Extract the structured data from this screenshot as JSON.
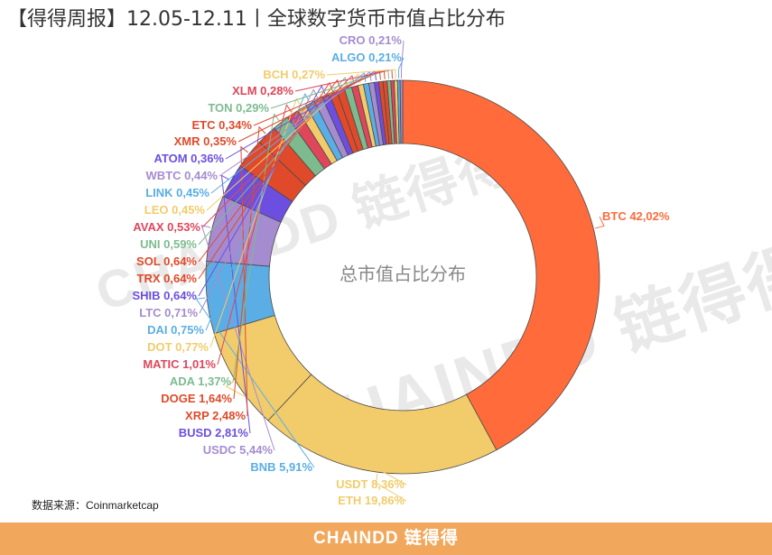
{
  "header": {
    "title": "【得得周报】12.05-12.11丨全球数字货币市值占比分布"
  },
  "watermark": {
    "text1": "CHAINDD 链得得",
    "text2": "CHAINDD 链得得"
  },
  "source": {
    "text": "数据来源：Coinmarketcap"
  },
  "footer": {
    "logo": "CHAINDD 链得得",
    "background": "#f2a85c"
  },
  "chart_data": {
    "type": "pie",
    "center_label": "总市值占比分布",
    "slices": [
      {
        "label": "BTC",
        "value_text": "42,02%",
        "value": 42.02,
        "color": "#ff6b3b"
      },
      {
        "label": "ETH",
        "value_text": "19,86%",
        "value": 19.86,
        "color": "#f2cc6b"
      },
      {
        "label": "USDT",
        "value_text": "8,36%",
        "value": 8.36,
        "color": "#f2cc6b"
      },
      {
        "label": "BNB",
        "value_text": "5,91%",
        "value": 5.91,
        "color": "#5aaee5"
      },
      {
        "label": "USDC",
        "value_text": "5,44%",
        "value": 5.44,
        "color": "#a58cd0"
      },
      {
        "label": "BUSD",
        "value_text": "2,81%",
        "value": 2.81,
        "color": "#6c4fe0"
      },
      {
        "label": "XRP",
        "value_text": "2,48%",
        "value": 2.48,
        "color": "#e04a2a"
      },
      {
        "label": "DOGE",
        "value_text": "1,64%",
        "value": 1.64,
        "color": "#e04a2a"
      },
      {
        "label": "ADA",
        "value_text": "1,37%",
        "value": 1.37,
        "color": "#7dbb8f"
      },
      {
        "label": "MATIC",
        "value_text": "1,01%",
        "value": 1.01,
        "color": "#e0465a"
      },
      {
        "label": "DOT",
        "value_text": "0,77%",
        "value": 0.77,
        "color": "#f2cc6b"
      },
      {
        "label": "DAI",
        "value_text": "0,75%",
        "value": 0.75,
        "color": "#5aaee5"
      },
      {
        "label": "LTC",
        "value_text": "0,71%",
        "value": 0.71,
        "color": "#a58cd0"
      },
      {
        "label": "SHIB",
        "value_text": "0,64%",
        "value": 0.64,
        "color": "#6c4fe0"
      },
      {
        "label": "TRX",
        "value_text": "0,64%",
        "value": 0.64,
        "color": "#e04a2a"
      },
      {
        "label": "SOL",
        "value_text": "0,64%",
        "value": 0.64,
        "color": "#e04a2a"
      },
      {
        "label": "UNI",
        "value_text": "0,59%",
        "value": 0.59,
        "color": "#7dbb8f"
      },
      {
        "label": "AVAX",
        "value_text": "0,53%",
        "value": 0.53,
        "color": "#e0465a"
      },
      {
        "label": "LEO",
        "value_text": "0,45%",
        "value": 0.45,
        "color": "#f2cc6b"
      },
      {
        "label": "LINK",
        "value_text": "0,45%",
        "value": 0.45,
        "color": "#5aaee5"
      },
      {
        "label": "WBTC",
        "value_text": "0,44%",
        "value": 0.44,
        "color": "#a58cd0"
      },
      {
        "label": "ATOM",
        "value_text": "0,36%",
        "value": 0.36,
        "color": "#6c4fe0"
      },
      {
        "label": "XMR",
        "value_text": "0,35%",
        "value": 0.35,
        "color": "#e04a2a"
      },
      {
        "label": "ETC",
        "value_text": "0,34%",
        "value": 0.34,
        "color": "#e04a2a"
      },
      {
        "label": "TON",
        "value_text": "0,29%",
        "value": 0.29,
        "color": "#7dbb8f"
      },
      {
        "label": "XLM",
        "value_text": "0,28%",
        "value": 0.28,
        "color": "#e0465a"
      },
      {
        "label": "BCH",
        "value_text": "0,27%",
        "value": 0.27,
        "color": "#f2cc6b"
      },
      {
        "label": "ALGO",
        "value_text": "0,21%",
        "value": 0.21,
        "color": "#5aaee5"
      },
      {
        "label": "CRO",
        "value_text": "0,21%",
        "value": 0.21,
        "color": "#a58cd0"
      }
    ]
  }
}
